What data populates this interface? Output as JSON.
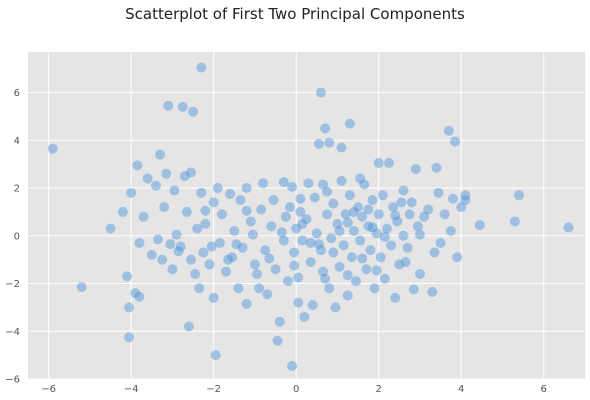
{
  "chart_data": {
    "type": "scatter",
    "title": "Scatterplot of First Two Principal Components",
    "xlabel": "",
    "ylabel": "",
    "xlim": [
      -6.5,
      7.0
    ],
    "ylim": [
      -6.0,
      7.7
    ],
    "xticks": [
      -6,
      -4,
      -2,
      0,
      2,
      4,
      6
    ],
    "yticks": [
      -6,
      -4,
      -2,
      0,
      2,
      4,
      6
    ],
    "xtick_labels": [
      "−6",
      "−4",
      "−2",
      "0",
      "2",
      "4",
      "6"
    ],
    "ytick_labels": [
      "−6",
      "−4",
      "−2",
      "0",
      "2",
      "4",
      "6"
    ],
    "grid": true,
    "point_color": "#4a90d9",
    "background_color": "#e5e5e5",
    "points": [
      [
        -5.9,
        3.65
      ],
      [
        -5.2,
        -2.15
      ],
      [
        -4.5,
        0.3
      ],
      [
        -4.2,
        1.0
      ],
      [
        -4.1,
        -1.7
      ],
      [
        -4.05,
        -3.0
      ],
      [
        -4.05,
        -4.25
      ],
      [
        -4.0,
        1.8
      ],
      [
        -3.9,
        -2.4
      ],
      [
        -3.85,
        2.95
      ],
      [
        -3.8,
        -0.3
      ],
      [
        -3.8,
        -2.55
      ],
      [
        -3.7,
        0.8
      ],
      [
        -3.6,
        2.4
      ],
      [
        -3.5,
        -0.8
      ],
      [
        -3.4,
        2.1
      ],
      [
        -3.3,
        3.4
      ],
      [
        -3.25,
        -1.0
      ],
      [
        -3.2,
        1.2
      ],
      [
        -3.15,
        2.6
      ],
      [
        -3.1,
        5.45
      ],
      [
        -3.0,
        -1.4
      ],
      [
        -2.95,
        1.9
      ],
      [
        -2.9,
        0.05
      ],
      [
        -2.8,
        -0.45
      ],
      [
        -2.75,
        5.4
      ],
      [
        -2.7,
        2.5
      ],
      [
        -2.65,
        1.0
      ],
      [
        -2.6,
        -3.8
      ],
      [
        -2.55,
        2.65
      ],
      [
        -2.5,
        5.2
      ],
      [
        -2.45,
        -1.6
      ],
      [
        -2.4,
        0.3
      ],
      [
        -2.35,
        -2.2
      ],
      [
        -2.3,
        1.8
      ],
      [
        -2.3,
        7.05
      ],
      [
        -2.25,
        -0.7
      ],
      [
        -2.2,
        0.5
      ],
      [
        -2.1,
        -1.2
      ],
      [
        -2.0,
        1.4
      ],
      [
        -2.0,
        -2.6
      ],
      [
        -1.95,
        -5.0
      ],
      [
        -1.9,
        2.0
      ],
      [
        -1.85,
        -0.3
      ],
      [
        -1.8,
        0.9
      ],
      [
        -1.7,
        -1.5
      ],
      [
        -1.6,
        1.75
      ],
      [
        -1.55,
        -0.9
      ],
      [
        -1.5,
        0.2
      ],
      [
        -1.4,
        -2.2
      ],
      [
        -1.35,
        1.5
      ],
      [
        -1.3,
        -0.5
      ],
      [
        -1.2,
        2.0
      ],
      [
        -1.2,
        -2.85
      ],
      [
        -1.1,
        0.6
      ],
      [
        -1.0,
        -1.2
      ],
      [
        -0.9,
        -2.2
      ],
      [
        -0.85,
        1.1
      ],
      [
        -0.8,
        2.2
      ],
      [
        -0.75,
        -0.6
      ],
      [
        -0.7,
        -2.45
      ],
      [
        -0.6,
        0.4
      ],
      [
        -0.55,
        1.5
      ],
      [
        -0.5,
        -1.4
      ],
      [
        -0.45,
        -4.4
      ],
      [
        -0.4,
        -3.6
      ],
      [
        -0.3,
        2.25
      ],
      [
        -0.3,
        -0.2
      ],
      [
        -0.25,
        0.8
      ],
      [
        -0.2,
        -1.9
      ],
      [
        -0.15,
        1.2
      ],
      [
        -0.1,
        -5.45
      ],
      [
        -0.1,
        2.05
      ],
      [
        -0.05,
        -0.7
      ],
      [
        0.0,
        0.3
      ],
      [
        0.05,
        -1.75
      ],
      [
        0.05,
        -2.8
      ],
      [
        0.1,
        1.0
      ],
      [
        0.15,
        -0.2
      ],
      [
        0.2,
        -3.4
      ],
      [
        0.25,
        0.7
      ],
      [
        0.3,
        2.2
      ],
      [
        0.35,
        -1.1
      ],
      [
        0.4,
        -2.9
      ],
      [
        0.45,
        1.6
      ],
      [
        0.5,
        0.1
      ],
      [
        0.55,
        3.85
      ],
      [
        0.6,
        6.0
      ],
      [
        0.6,
        -0.6
      ],
      [
        0.65,
        2.15
      ],
      [
        0.7,
        4.5
      ],
      [
        0.7,
        -1.8
      ],
      [
        0.75,
        0.9
      ],
      [
        0.8,
        3.9
      ],
      [
        0.8,
        -2.2
      ],
      [
        0.85,
        -0.1
      ],
      [
        0.9,
        1.35
      ],
      [
        0.95,
        -3.0
      ],
      [
        1.0,
        0.5
      ],
      [
        1.05,
        -1.3
      ],
      [
        1.1,
        2.3
      ],
      [
        1.1,
        3.7
      ],
      [
        1.15,
        -0.4
      ],
      [
        1.2,
        0.9
      ],
      [
        1.25,
        -2.5
      ],
      [
        1.3,
        4.7
      ],
      [
        1.3,
        1.7
      ],
      [
        1.35,
        -0.9
      ],
      [
        1.4,
        0.2
      ],
      [
        1.45,
        -1.9
      ],
      [
        1.5,
        1.2
      ],
      [
        1.55,
        -0.2
      ],
      [
        1.6,
        0.8
      ],
      [
        1.65,
        2.15
      ],
      [
        1.7,
        -1.4
      ],
      [
        1.75,
        0.4
      ],
      [
        1.8,
        -0.6
      ],
      [
        1.85,
        1.5
      ],
      [
        1.9,
        -2.2
      ],
      [
        1.95,
        0.1
      ],
      [
        2.0,
        3.05
      ],
      [
        2.0,
        0.9
      ],
      [
        2.05,
        -0.9
      ],
      [
        2.1,
        1.7
      ],
      [
        2.15,
        -1.8
      ],
      [
        2.2,
        0.3
      ],
      [
        2.25,
        3.05
      ],
      [
        2.3,
        -0.4
      ],
      [
        2.35,
        1.2
      ],
      [
        2.4,
        -2.6
      ],
      [
        2.45,
        0.6
      ],
      [
        2.5,
        -1.2
      ],
      [
        2.55,
        1.4
      ],
      [
        2.6,
        0.0
      ],
      [
        2.7,
        -0.5
      ],
      [
        2.75,
        0.9
      ],
      [
        2.8,
        1.4
      ],
      [
        2.85,
        -2.25
      ],
      [
        2.9,
        2.8
      ],
      [
        2.95,
        0.4
      ],
      [
        3.0,
        -1.6
      ],
      [
        3.1,
        0.8
      ],
      [
        3.2,
        1.1
      ],
      [
        3.3,
        -2.35
      ],
      [
        3.35,
        -0.7
      ],
      [
        3.4,
        2.85
      ],
      [
        3.45,
        1.8
      ],
      [
        3.5,
        -0.3
      ],
      [
        3.6,
        0.9
      ],
      [
        3.7,
        4.4
      ],
      [
        3.75,
        0.2
      ],
      [
        3.8,
        1.55
      ],
      [
        3.85,
        3.95
      ],
      [
        3.9,
        -0.9
      ],
      [
        4.0,
        1.2
      ],
      [
        4.1,
        1.7
      ],
      [
        4.1,
        1.5
      ],
      [
        4.45,
        0.45
      ],
      [
        5.3,
        0.6
      ],
      [
        5.4,
        1.7
      ],
      [
        6.6,
        0.35
      ],
      [
        -1.05,
        0.05
      ],
      [
        -0.65,
        -0.95
      ],
      [
        0.15,
        0.5
      ],
      [
        0.55,
        -0.35
      ],
      [
        1.25,
        0.55
      ],
      [
        1.6,
        -0.95
      ],
      [
        2.15,
        -0.05
      ],
      [
        2.4,
        0.85
      ],
      [
        1.85,
        0.35
      ],
      [
        1.05,
        0.2
      ],
      [
        0.35,
        -0.3
      ],
      [
        -0.35,
        0.15
      ],
      [
        -1.45,
        -0.35
      ],
      [
        -2.05,
        -0.45
      ],
      [
        -2.85,
        -0.65
      ],
      [
        -3.35,
        -0.15
      ],
      [
        1.4,
        1.0
      ],
      [
        0.9,
        -0.7
      ],
      [
        1.75,
        1.1
      ],
      [
        2.6,
        1.9
      ],
      [
        3.0,
        0.05
      ],
      [
        -0.05,
        -1.25
      ],
      [
        0.65,
        -1.5
      ],
      [
        1.25,
        -1.65
      ],
      [
        1.95,
        -1.45
      ],
      [
        2.65,
        -1.1
      ],
      [
        -0.95,
        -1.6
      ],
      [
        -1.65,
        -1.0
      ],
      [
        -2.55,
        -1.0
      ],
      [
        -3.05,
        -0.35
      ],
      [
        -2.2,
        1.05
      ],
      [
        -1.2,
        1.05
      ],
      [
        0.1,
        1.55
      ],
      [
        0.75,
        1.85
      ],
      [
        1.55,
        2.4
      ]
    ]
  }
}
